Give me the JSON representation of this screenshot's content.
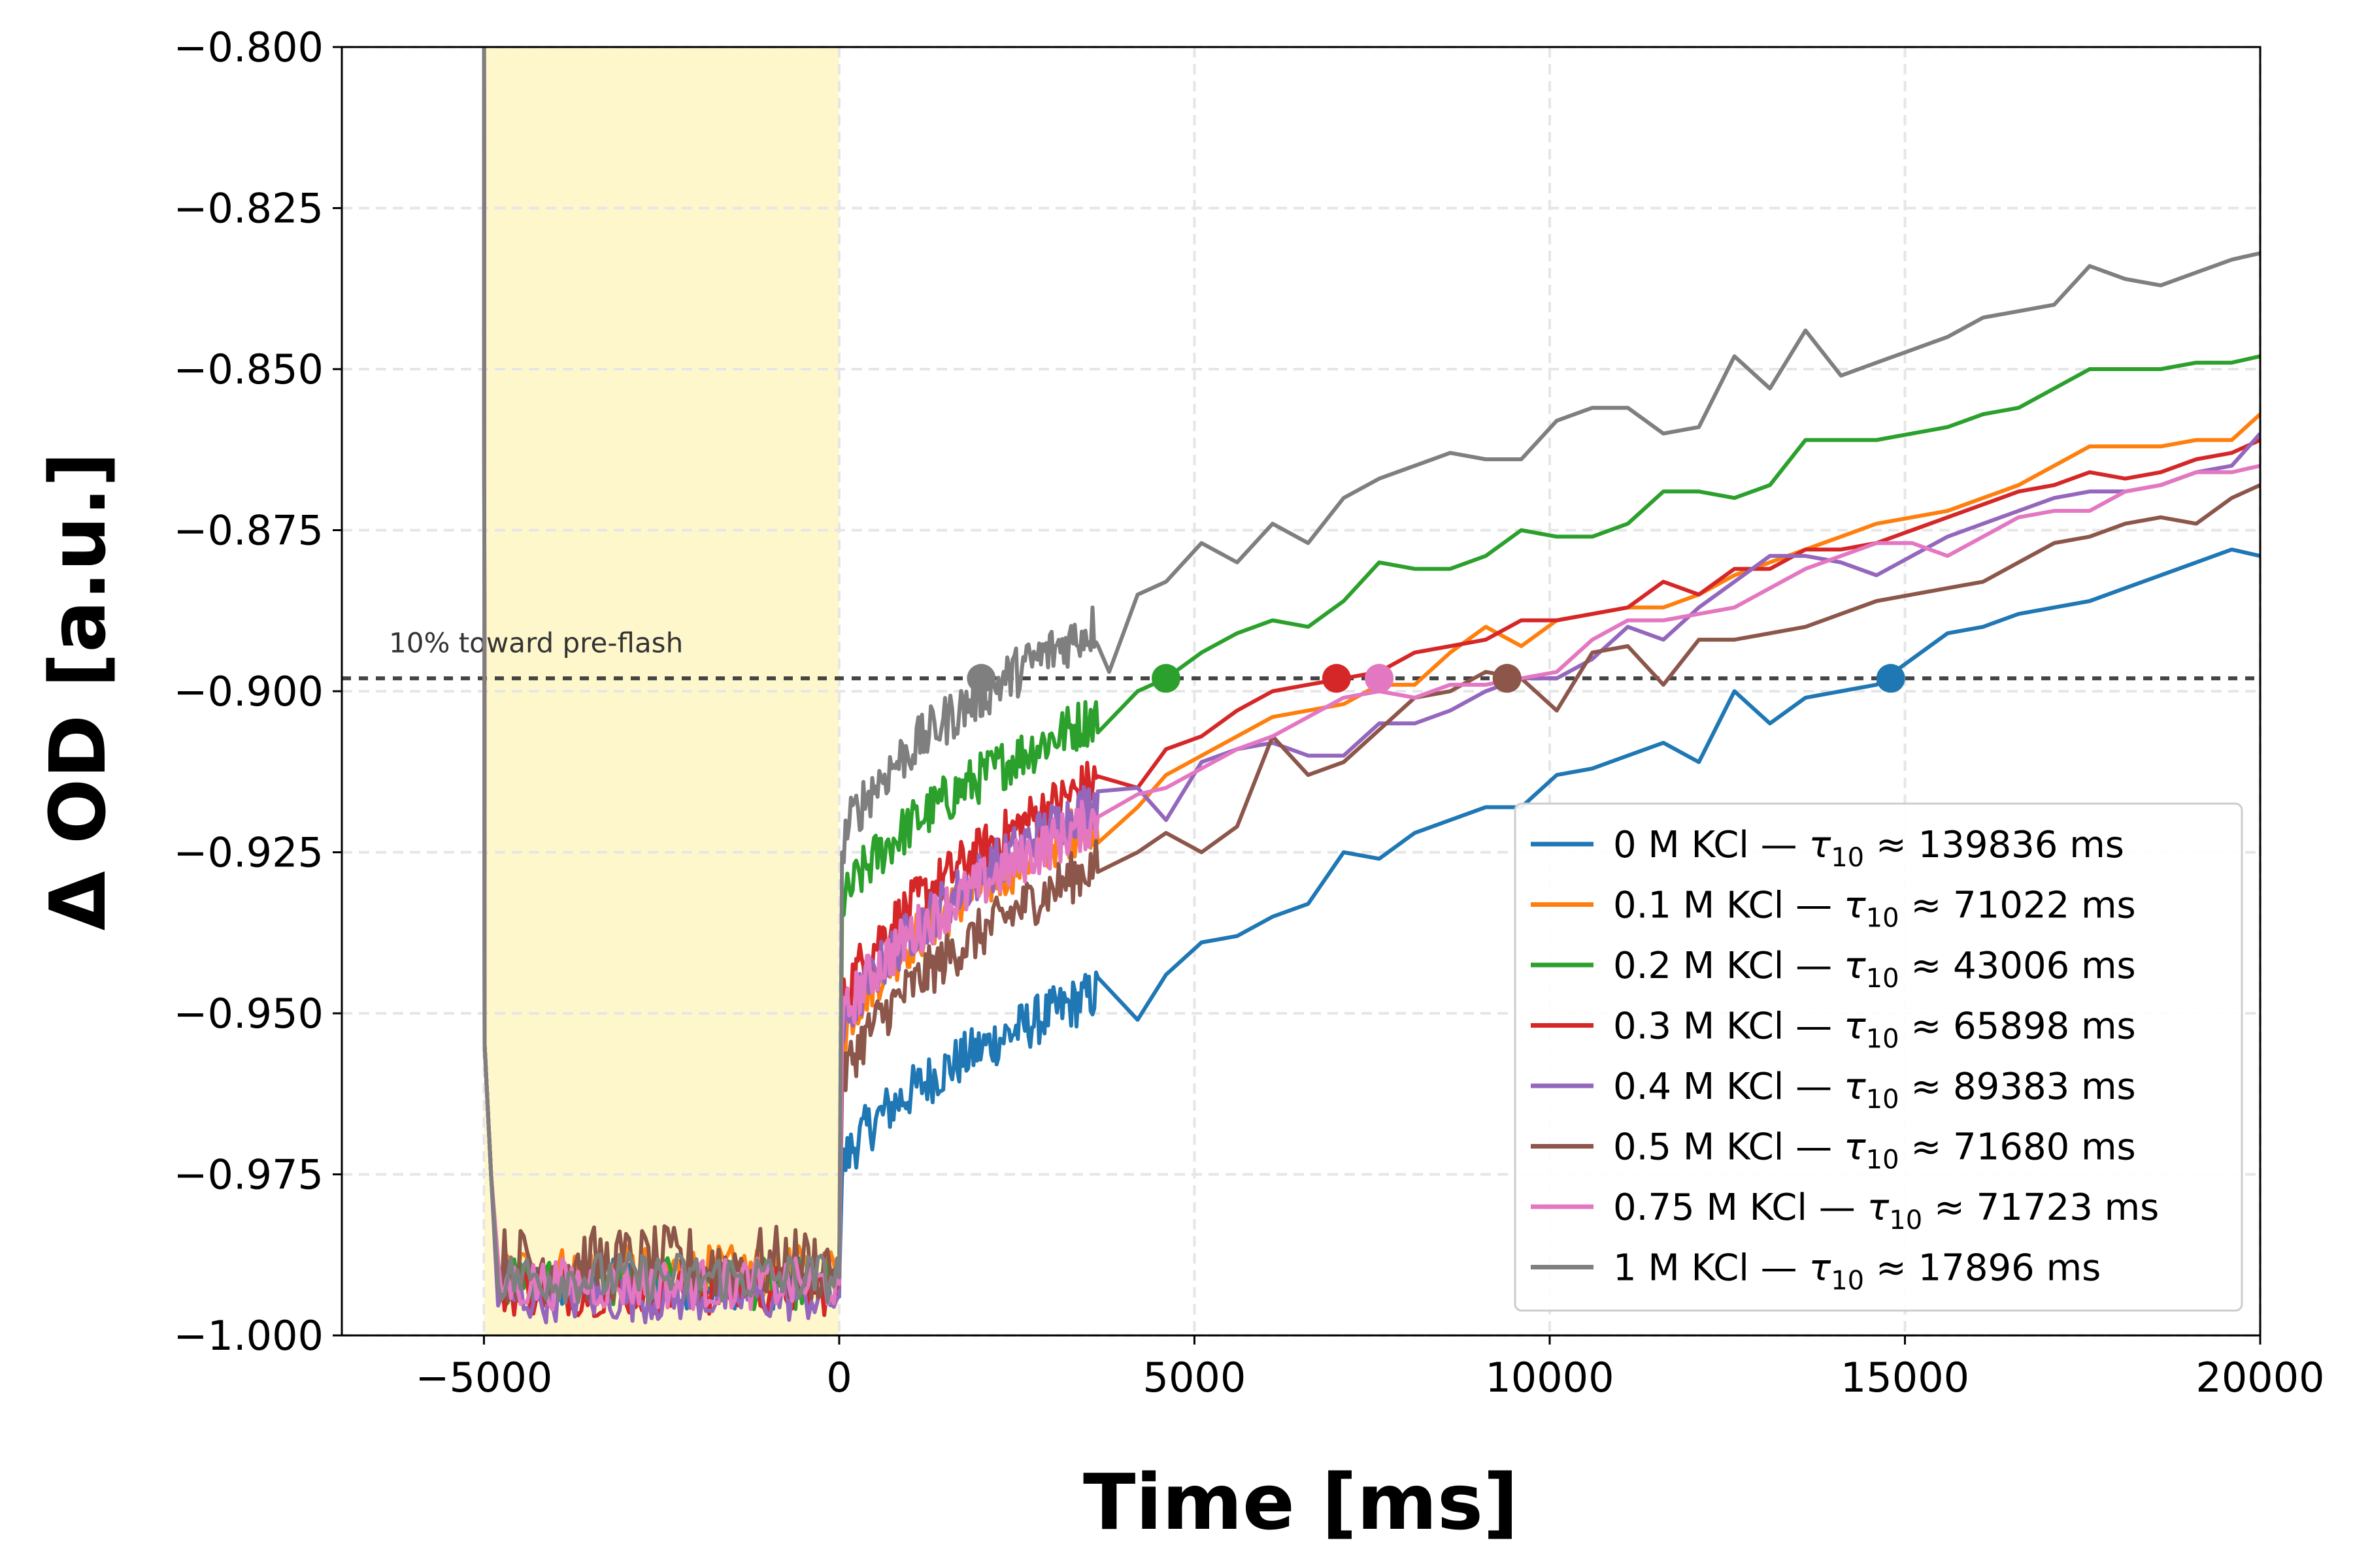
{
  "chart_data": {
    "type": "line",
    "xlabel": "Time [ms]",
    "ylabel": "Δ OD [a.u.]",
    "xlim": [
      -7000,
      20000
    ],
    "ylim": [
      -1.0,
      -0.8
    ],
    "xticks": [
      -5000,
      0,
      5000,
      10000,
      15000,
      20000
    ],
    "xtick_labels": [
      "−5000",
      "0",
      "5000",
      "10000",
      "15000",
      "20000"
    ],
    "yticks": [
      -1.0,
      -0.975,
      -0.95,
      -0.925,
      -0.9,
      -0.875,
      -0.85,
      -0.825,
      -0.8
    ],
    "ytick_labels": [
      "−1.000",
      "−0.975",
      "−0.950",
      "−0.925",
      "−0.900",
      "−0.875",
      "−0.850",
      "−0.825",
      "−0.800"
    ],
    "grid": true,
    "legend_position": "lower-right",
    "flash_region": {
      "x_start": -5000,
      "x_end": 0,
      "color": "#fff7cc"
    },
    "threshold": {
      "y": -0.898,
      "label": "10% toward pre-flash"
    },
    "series": [
      {
        "name": "0 M KCl — τ10 ≈ 139836 ms",
        "label_parts": {
          "prefix": "0 M KCl — ",
          "tau_sub": "10",
          "suffix": " ≈ 139836 ms"
        },
        "color": "#1f77b4",
        "flash_level": -0.992,
        "start": -0.975,
        "end_dense": -0.947,
        "x": [
          4200,
          4600,
          5100,
          5600,
          6100,
          6600,
          7100,
          7600,
          8100,
          8600,
          9100,
          9600,
          10100,
          10600,
          11100,
          11600,
          12100,
          12600,
          13100,
          13600,
          14100,
          14600,
          15100,
          15600,
          16100,
          16600,
          17100,
          17600,
          18100,
          18600,
          19100,
          19600,
          20000
        ],
        "y": [
          -0.951,
          -0.944,
          -0.939,
          -0.938,
          -0.935,
          -0.933,
          -0.925,
          -0.926,
          -0.922,
          -0.92,
          -0.918,
          -0.918,
          -0.913,
          -0.912,
          -0.91,
          -0.908,
          -0.911,
          -0.9,
          -0.905,
          -0.901,
          -0.9,
          -0.899,
          -0.895,
          -0.891,
          -0.89,
          -0.888,
          -0.887,
          -0.886,
          -0.884,
          -0.882,
          -0.88,
          -0.878,
          -0.879
        ],
        "marker": {
          "x": 14800,
          "y": -0.898
        }
      },
      {
        "name": "0.1 M KCl — τ10 ≈ 71022 ms",
        "label_parts": {
          "prefix": "0.1 M KCl — ",
          "tau_sub": "10",
          "suffix": " ≈ 71022 ms"
        },
        "color": "#ff7f0e",
        "flash_level": -0.99,
        "start": -0.955,
        "end_dense": -0.92,
        "x": [
          4200,
          4600,
          5100,
          5600,
          6100,
          6600,
          7100,
          7600,
          8100,
          8600,
          9100,
          9600,
          10100,
          10600,
          11100,
          11600,
          12100,
          12600,
          13100,
          13600,
          14100,
          14600,
          15100,
          15600,
          16100,
          16600,
          17100,
          17600,
          18100,
          18600,
          19100,
          19600,
          20000
        ],
        "y": [
          -0.918,
          -0.913,
          -0.91,
          -0.907,
          -0.904,
          -0.903,
          -0.902,
          -0.899,
          -0.899,
          -0.894,
          -0.89,
          -0.893,
          -0.889,
          -0.888,
          -0.887,
          -0.887,
          -0.885,
          -0.882,
          -0.88,
          -0.878,
          -0.876,
          -0.874,
          -0.873,
          -0.872,
          -0.87,
          -0.868,
          -0.865,
          -0.862,
          -0.862,
          -0.862,
          -0.861,
          -0.861,
          -0.857
        ],
        "marker": {
          "x": 7600,
          "y": -0.898
        }
      },
      {
        "name": "0.2 M KCl — τ10 ≈ 43006 ms",
        "label_parts": {
          "prefix": "0.2 M KCl — ",
          "tau_sub": "10",
          "suffix": " ≈ 43006 ms"
        },
        "color": "#2ca02c",
        "flash_level": -0.992,
        "start": -0.935,
        "end_dense": -0.904,
        "x": [
          4200,
          4600,
          5100,
          5600,
          6100,
          6600,
          7100,
          7600,
          8100,
          8600,
          9100,
          9600,
          10100,
          10600,
          11100,
          11600,
          12100,
          12600,
          13100,
          13600,
          14100,
          14600,
          15100,
          15600,
          16100,
          16600,
          17100,
          17600,
          18100,
          18600,
          19100,
          19600,
          20000
        ],
        "y": [
          -0.9,
          -0.898,
          -0.894,
          -0.891,
          -0.889,
          -0.89,
          -0.886,
          -0.88,
          -0.881,
          -0.881,
          -0.879,
          -0.875,
          -0.876,
          -0.876,
          -0.874,
          -0.869,
          -0.869,
          -0.87,
          -0.868,
          -0.861,
          -0.861,
          -0.861,
          -0.86,
          -0.859,
          -0.857,
          -0.856,
          -0.853,
          -0.85,
          -0.85,
          -0.85,
          -0.849,
          -0.849,
          -0.848
        ],
        "marker": {
          "x": 4600,
          "y": -0.898
        }
      },
      {
        "name": "0.3 M KCl — τ10 ≈ 65898 ms",
        "label_parts": {
          "prefix": "0.3 M KCl — ",
          "tau_sub": "10",
          "suffix": " ≈ 65898 ms"
        },
        "color": "#d62728",
        "flash_level": -0.993,
        "start": -0.95,
        "end_dense": -0.914,
        "x": [
          4200,
          4600,
          5100,
          5600,
          6100,
          6600,
          7100,
          7600,
          8100,
          8600,
          9100,
          9600,
          10100,
          10600,
          11100,
          11600,
          12100,
          12600,
          13100,
          13600,
          14100,
          14600,
          15100,
          15600,
          16100,
          16600,
          17100,
          17600,
          18100,
          18600,
          19100,
          19600,
          20000
        ],
        "y": [
          -0.915,
          -0.909,
          -0.907,
          -0.903,
          -0.9,
          -0.899,
          -0.898,
          -0.897,
          -0.894,
          -0.893,
          -0.892,
          -0.889,
          -0.889,
          -0.888,
          -0.887,
          -0.883,
          -0.885,
          -0.881,
          -0.881,
          -0.878,
          -0.878,
          -0.877,
          -0.875,
          -0.873,
          -0.871,
          -0.869,
          -0.868,
          -0.866,
          -0.867,
          -0.866,
          -0.864,
          -0.863,
          -0.861
        ],
        "marker": {
          "x": 7000,
          "y": -0.898
        }
      },
      {
        "name": "0.4 M KCl — τ10 ≈ 89383 ms",
        "label_parts": {
          "prefix": "0.4 M KCl — ",
          "tau_sub": "10",
          "suffix": " ≈ 89383 ms"
        },
        "color": "#9467bd",
        "flash_level": -0.994,
        "start": -0.955,
        "end_dense": -0.917,
        "x": [
          4200,
          4600,
          5100,
          5600,
          6100,
          6600,
          7100,
          7600,
          8100,
          8600,
          9100,
          9600,
          10100,
          10600,
          11100,
          11600,
          12100,
          12600,
          13100,
          13600,
          14100,
          14600,
          15100,
          15600,
          16100,
          16600,
          17100,
          17600,
          18100,
          18600,
          19100,
          19600,
          20000
        ],
        "y": [
          -0.915,
          -0.92,
          -0.911,
          -0.909,
          -0.908,
          -0.91,
          -0.91,
          -0.905,
          -0.905,
          -0.903,
          -0.9,
          -0.898,
          -0.898,
          -0.895,
          -0.89,
          -0.892,
          -0.887,
          -0.883,
          -0.879,
          -0.879,
          -0.88,
          -0.882,
          -0.879,
          -0.876,
          -0.874,
          -0.872,
          -0.87,
          -0.869,
          -0.869,
          -0.868,
          -0.866,
          -0.865,
          -0.86
        ],
        "marker": {
          "x": 9400,
          "y": -0.898
        }
      },
      {
        "name": "0.5 M KCl — τ10 ≈ 71680 ms",
        "label_parts": {
          "prefix": "0.5 M KCl — ",
          "tau_sub": "10",
          "suffix": " ≈ 71680 ms"
        },
        "color": "#8c564b",
        "flash_level": -0.989,
        "start": -0.962,
        "end_dense": -0.927,
        "x": [
          4200,
          4600,
          5100,
          5600,
          6100,
          6600,
          7100,
          7600,
          8100,
          8600,
          9100,
          9600,
          10100,
          10600,
          11100,
          11600,
          12100,
          12600,
          13100,
          13600,
          14100,
          14600,
          15100,
          15600,
          16100,
          16600,
          17100,
          17600,
          18100,
          18600,
          19100,
          19600,
          20000
        ],
        "y": [
          -0.925,
          -0.922,
          -0.925,
          -0.921,
          -0.907,
          -0.913,
          -0.911,
          -0.906,
          -0.901,
          -0.9,
          -0.897,
          -0.898,
          -0.903,
          -0.894,
          -0.893,
          -0.899,
          -0.892,
          -0.892,
          -0.891,
          -0.89,
          -0.888,
          -0.886,
          -0.885,
          -0.884,
          -0.883,
          -0.88,
          -0.877,
          -0.876,
          -0.874,
          -0.873,
          -0.874,
          -0.87,
          -0.868
        ],
        "marker": {
          "x": 9400,
          "y": -0.898
        }
      },
      {
        "name": "0.75 M KCl — τ10 ≈ 71723 ms",
        "label_parts": {
          "prefix": "0.75 M KCl — ",
          "tau_sub": "10",
          "suffix": " ≈ 71723 ms"
        },
        "color": "#e377c2",
        "flash_level": -0.992,
        "start": -0.953,
        "end_dense": -0.92,
        "x": [
          4200,
          4600,
          5100,
          5600,
          6100,
          6600,
          7100,
          7600,
          8100,
          8600,
          9100,
          9600,
          10100,
          10600,
          11100,
          11600,
          12100,
          12600,
          13100,
          13600,
          14100,
          14600,
          15100,
          15600,
          16100,
          16600,
          17100,
          17600,
          18100,
          18600,
          19100,
          19600,
          20000
        ],
        "y": [
          -0.916,
          -0.915,
          -0.912,
          -0.909,
          -0.907,
          -0.904,
          -0.901,
          -0.9,
          -0.901,
          -0.899,
          -0.899,
          -0.898,
          -0.897,
          -0.892,
          -0.889,
          -0.889,
          -0.888,
          -0.887,
          -0.884,
          -0.881,
          -0.879,
          -0.877,
          -0.877,
          -0.879,
          -0.876,
          -0.873,
          -0.872,
          -0.872,
          -0.869,
          -0.868,
          -0.866,
          -0.866,
          -0.865
        ],
        "marker": {
          "x": 7600,
          "y": -0.898
        }
      },
      {
        "name": "1 M KCl — τ10 ≈ 17896 ms",
        "label_parts": {
          "prefix": "1 M KCl — ",
          "tau_sub": "10",
          "suffix": " ≈ 17896 ms"
        },
        "color": "#7f7f7f",
        "flash_level": -0.991,
        "start": -0.925,
        "end_dense": -0.89,
        "x": [
          3800,
          4200,
          4600,
          5100,
          5600,
          6100,
          6600,
          7100,
          7600,
          8100,
          8600,
          9100,
          9600,
          10100,
          10600,
          11100,
          11600,
          12100,
          12600,
          13100,
          13600,
          14100,
          14600,
          15100,
          15600,
          16100,
          16600,
          17100,
          17600,
          18100,
          18600,
          19100,
          19600,
          20000
        ],
        "y": [
          -0.897,
          -0.885,
          -0.883,
          -0.877,
          -0.88,
          -0.874,
          -0.877,
          -0.87,
          -0.867,
          -0.865,
          -0.863,
          -0.864,
          -0.864,
          -0.858,
          -0.856,
          -0.856,
          -0.86,
          -0.859,
          -0.848,
          -0.853,
          -0.844,
          -0.851,
          -0.849,
          -0.847,
          -0.845,
          -0.842,
          -0.841,
          -0.84,
          -0.834,
          -0.836,
          -0.837,
          -0.835,
          -0.833,
          -0.832
        ],
        "marker": {
          "x": 2000,
          "y": -0.898
        }
      }
    ]
  }
}
